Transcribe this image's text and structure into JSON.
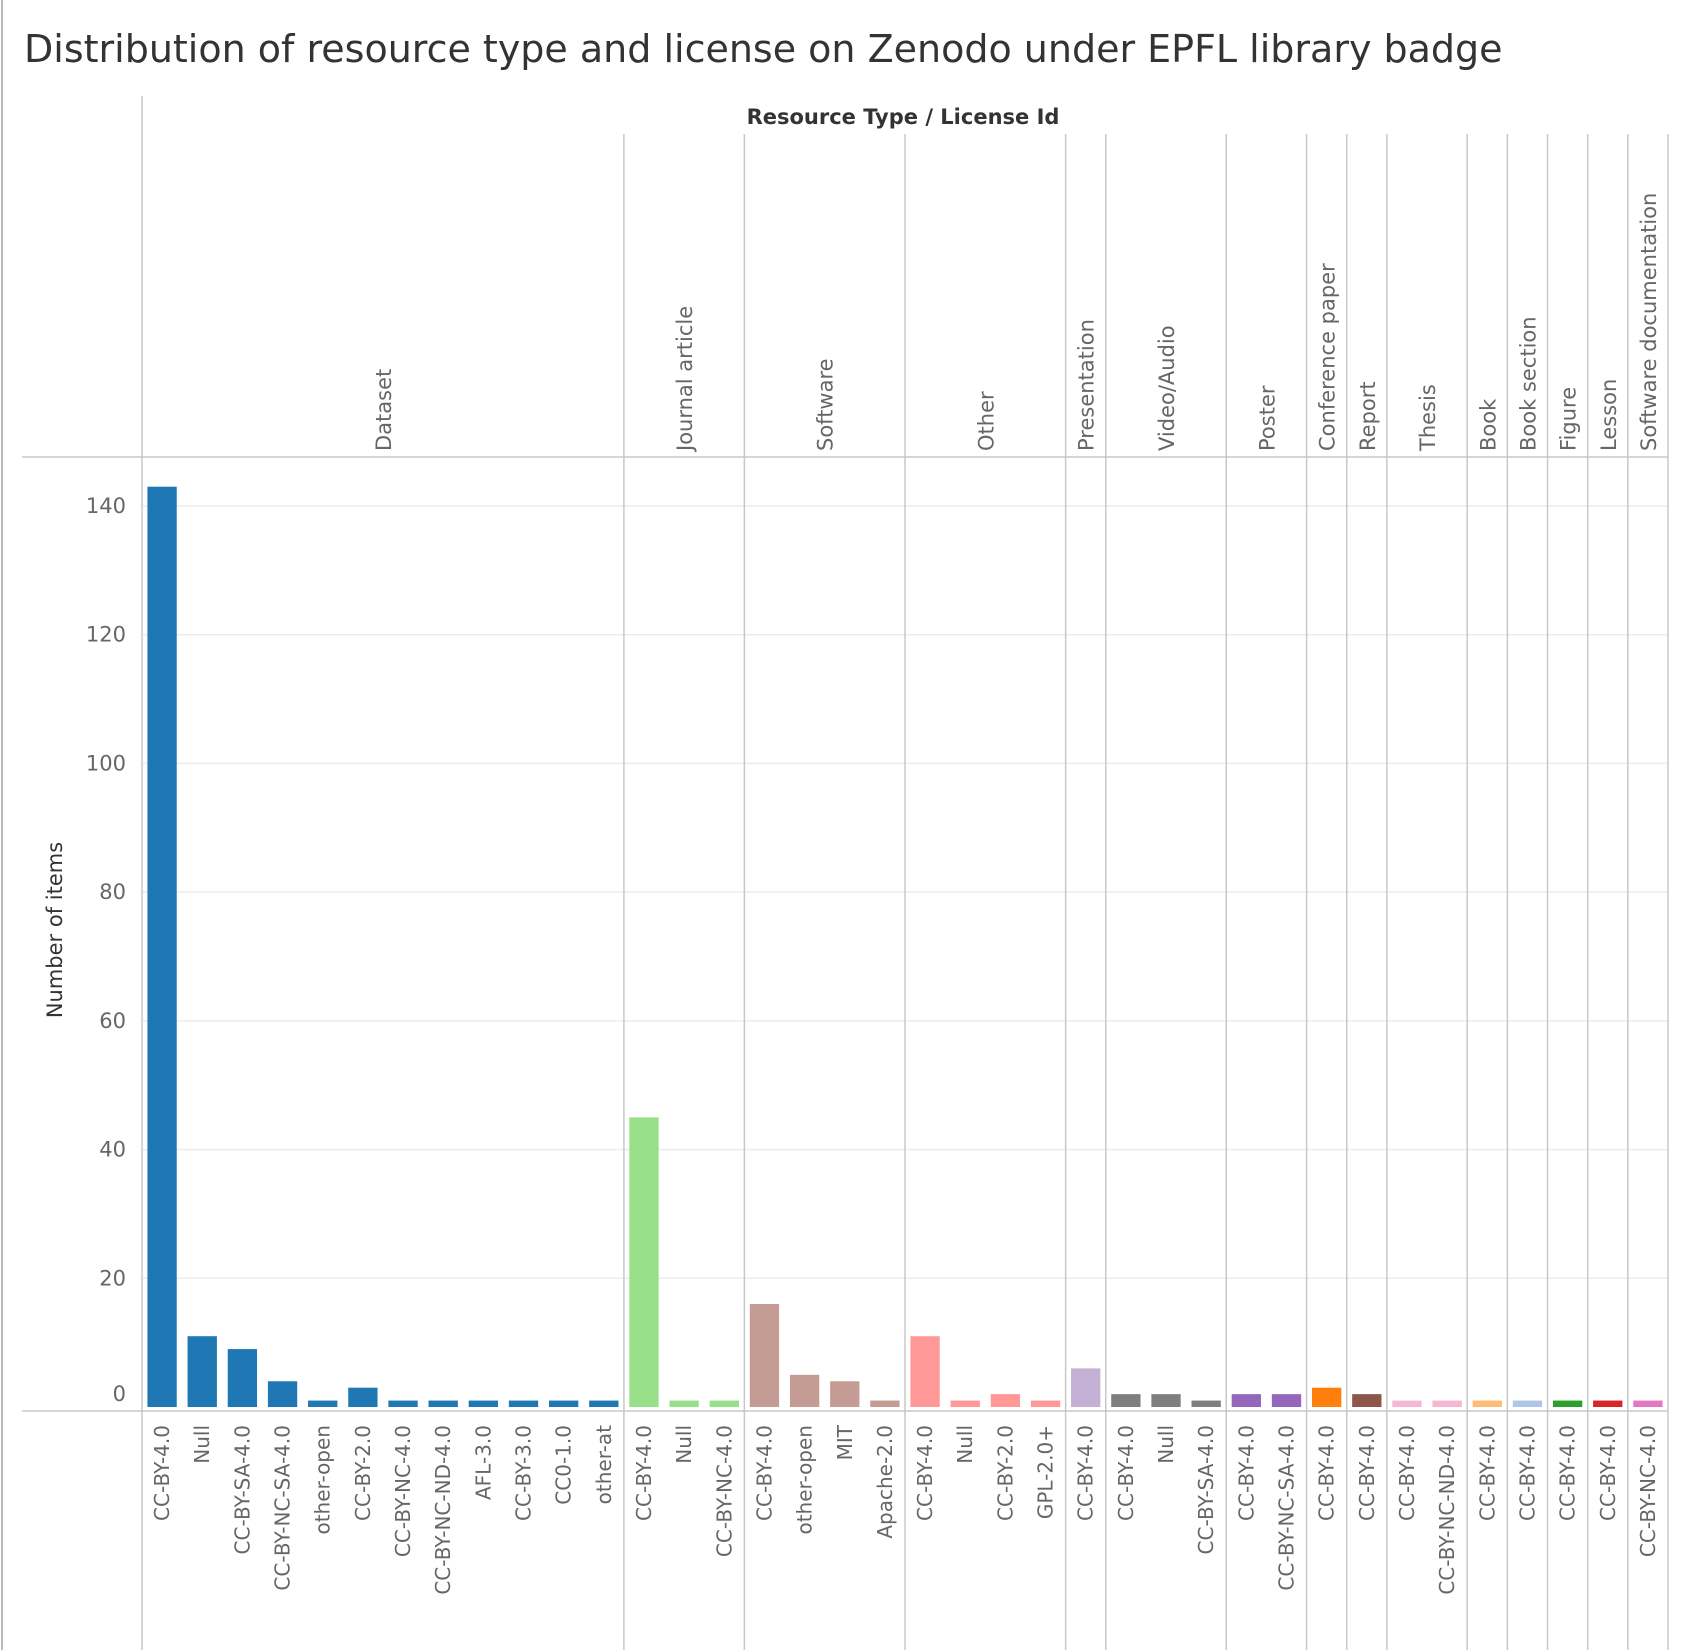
{
  "chart_data": {
    "type": "bar",
    "title": "Distribution of resource type and license on Zenodo under EPFL library badge",
    "column_header": "Resource Type  /  License Id",
    "ylabel": "Number of items",
    "ylim": [
      -2,
      150
    ],
    "yticks": [
      0,
      20,
      40,
      60,
      80,
      100,
      120,
      140
    ],
    "grid": true,
    "legend": "none",
    "groups": [
      {
        "name": "Dataset",
        "color": "#1f77b4",
        "bars": [
          {
            "license": "CC-BY-4.0",
            "value": 143
          },
          {
            "license": "Null",
            "value": 11
          },
          {
            "license": "CC-BY-SA-4.0",
            "value": 9
          },
          {
            "license": "CC-BY-NC-SA-4.0",
            "value": 4
          },
          {
            "license": "other-open",
            "value": 1
          },
          {
            "license": "CC-BY-2.0",
            "value": 3
          },
          {
            "license": "CC-BY-NC-4.0",
            "value": 1
          },
          {
            "license": "CC-BY-NC-ND-4.0",
            "value": 1
          },
          {
            "license": "AFL-3.0",
            "value": 1
          },
          {
            "license": "CC-BY-3.0",
            "value": 1
          },
          {
            "license": "CC0-1.0",
            "value": 1
          },
          {
            "license": "other-at",
            "value": 1
          }
        ]
      },
      {
        "name": "Journal article",
        "color": "#98df8a",
        "bars": [
          {
            "license": "CC-BY-4.0",
            "value": 45
          },
          {
            "license": "Null",
            "value": 1
          },
          {
            "license": "CC-BY-NC-4.0",
            "value": 1
          }
        ]
      },
      {
        "name": "Software",
        "color": "#c49c94",
        "bars": [
          {
            "license": "CC-BY-4.0",
            "value": 16
          },
          {
            "license": "other-open",
            "value": 5
          },
          {
            "license": "MIT",
            "value": 4
          },
          {
            "license": "Apache-2.0",
            "value": 1
          }
        ]
      },
      {
        "name": "Other",
        "color": "#ff9896",
        "bars": [
          {
            "license": "CC-BY-4.0",
            "value": 11
          },
          {
            "license": "Null",
            "value": 1
          },
          {
            "license": "CC-BY-2.0",
            "value": 2
          },
          {
            "license": "GPL-2.0+",
            "value": 1
          }
        ]
      },
      {
        "name": "Presentation",
        "color": "#c5b0d5",
        "bars": [
          {
            "license": "CC-BY-4.0",
            "value": 6
          }
        ]
      },
      {
        "name": "Video/Audio",
        "color": "#7f7f7f",
        "bars": [
          {
            "license": "CC-BY-4.0",
            "value": 2
          },
          {
            "license": "Null",
            "value": 2
          },
          {
            "license": "CC-BY-SA-4.0",
            "value": 1
          }
        ]
      },
      {
        "name": "Poster",
        "color": "#9467bd",
        "bars": [
          {
            "license": "CC-BY-4.0",
            "value": 2
          },
          {
            "license": "CC-BY-NC-SA-4.0",
            "value": 2
          }
        ]
      },
      {
        "name": "Conference paper",
        "color": "#ff7f0e",
        "bars": [
          {
            "license": "CC-BY-4.0",
            "value": 3
          }
        ]
      },
      {
        "name": "Report",
        "color": "#8c564b",
        "bars": [
          {
            "license": "CC-BY-4.0",
            "value": 2
          }
        ]
      },
      {
        "name": "Thesis",
        "color": "#f7b6d2",
        "bars": [
          {
            "license": "CC-BY-4.0",
            "value": 1
          },
          {
            "license": "CC-BY-NC-ND-4.0",
            "value": 1
          }
        ]
      },
      {
        "name": "Book",
        "color": "#ffbb78",
        "bars": [
          {
            "license": "CC-BY-4.0",
            "value": 1
          }
        ]
      },
      {
        "name": "Book section",
        "color": "#aec7e8",
        "bars": [
          {
            "license": "CC-BY-4.0",
            "value": 1
          }
        ]
      },
      {
        "name": "Figure",
        "color": "#2ca02c",
        "bars": [
          {
            "license": "CC-BY-4.0",
            "value": 1
          }
        ]
      },
      {
        "name": "Lesson",
        "color": "#d62728",
        "bars": [
          {
            "license": "CC-BY-4.0",
            "value": 1
          }
        ]
      },
      {
        "name": "Software documentation",
        "color": "#e377c2",
        "bars": [
          {
            "license": "CC-BY-NC-4.0",
            "value": 1
          }
        ]
      }
    ]
  }
}
